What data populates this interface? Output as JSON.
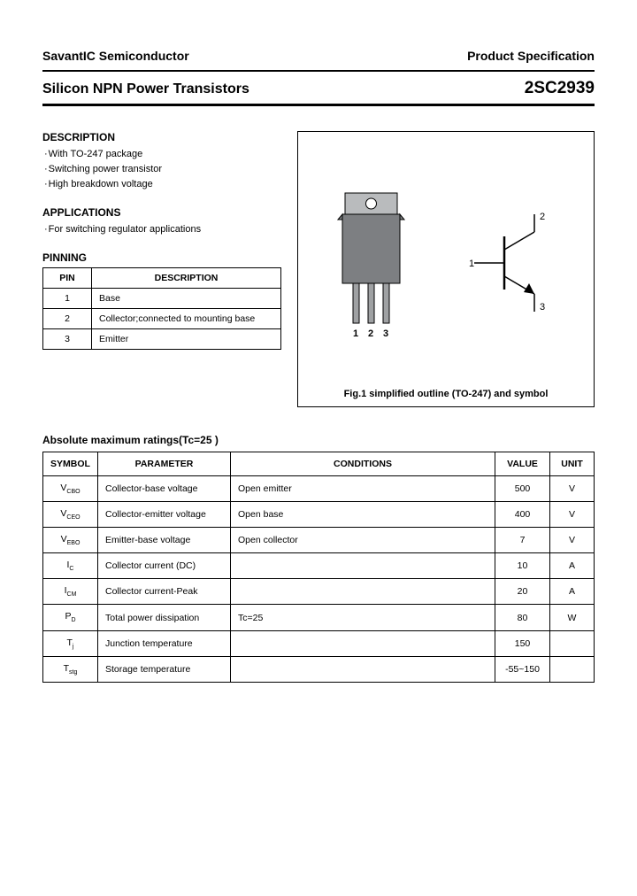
{
  "header": {
    "company": "SavantIC Semiconductor",
    "doc_type": "Product Specification",
    "product_family": "Silicon NPN Power Transistors",
    "part_number": "2SC2939"
  },
  "description": {
    "heading": "DESCRIPTION",
    "items": [
      "With TO-247 package",
      "Switching power transistor",
      "High breakdown voltage"
    ]
  },
  "applications": {
    "heading": "APPLICATIONS",
    "items": [
      "For switching regulator applications"
    ]
  },
  "pinning": {
    "heading": "PINNING",
    "columns": [
      "PIN",
      "DESCRIPTION"
    ],
    "rows": [
      [
        "1",
        "Base"
      ],
      [
        "2",
        "Collector;connected to mounting base"
      ],
      [
        "3",
        "Emitter"
      ]
    ]
  },
  "figure": {
    "caption": "Fig.1 simplified outline (TO-247) and symbol",
    "pin_labels": [
      "1",
      "2",
      "3"
    ],
    "symbol_labels": {
      "pin1": "1",
      "pin2": "2",
      "pin3": "3"
    },
    "colors": {
      "pkg_body": "#7d7f82",
      "pkg_tab": "#b9bbbd",
      "pkg_hole": "#ffffff",
      "lead": "#9fa1a3",
      "stroke": "#000000"
    }
  },
  "amr": {
    "heading": "Absolute maximum ratings(Tc=25 )",
    "columns": [
      "SYMBOL",
      "PARAMETER",
      "CONDITIONS",
      "VALUE",
      "UNIT"
    ],
    "col_widths": [
      "62px",
      "150px",
      "auto",
      "62px",
      "50px"
    ],
    "rows": [
      {
        "sym_main": "V",
        "sym_sub": "CBO",
        "param": "Collector-base voltage",
        "cond": "Open emitter",
        "val": "500",
        "unit": "V"
      },
      {
        "sym_main": "V",
        "sym_sub": "CEO",
        "param": "Collector-emitter voltage",
        "cond": "Open base",
        "val": "400",
        "unit": "V"
      },
      {
        "sym_main": "V",
        "sym_sub": "EBO",
        "param": "Emitter-base voltage",
        "cond": "Open collector",
        "val": "7",
        "unit": "V"
      },
      {
        "sym_main": "I",
        "sym_sub": "C",
        "param": "Collector current (DC)",
        "cond": "",
        "val": "10",
        "unit": "A"
      },
      {
        "sym_main": "I",
        "sym_sub": "CM",
        "param": "Collector current-Peak",
        "cond": "",
        "val": "20",
        "unit": "A"
      },
      {
        "sym_main": "P",
        "sym_sub": "D",
        "param": "Total power dissipation",
        "cond": "Tc=25 ",
        "val": "80",
        "unit": "W"
      },
      {
        "sym_main": "T",
        "sym_sub": "j",
        "param": "Junction temperature",
        "cond": "",
        "val": "150",
        "unit": ""
      },
      {
        "sym_main": "T",
        "sym_sub": "stg",
        "param": "Storage temperature",
        "cond": "",
        "val": "-55~150",
        "unit": ""
      }
    ]
  }
}
